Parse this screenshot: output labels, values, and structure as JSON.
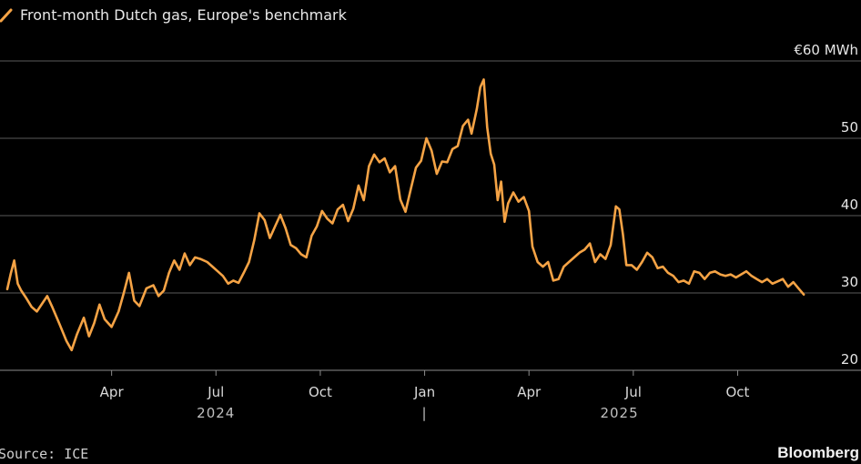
{
  "chart_data": {
    "type": "line",
    "title": "Front-month Dutch gas, Europe's benchmark",
    "unit_label": "€60 MWh",
    "ylim": [
      20,
      60
    ],
    "yticks": [
      {
        "value": 20,
        "label": "20"
      },
      {
        "value": 30,
        "label": "30"
      },
      {
        "value": 40,
        "label": "40"
      },
      {
        "value": 50,
        "label": "50"
      },
      {
        "value": 60,
        "label": "€60 MWh"
      }
    ],
    "xlim": [
      0,
      23.5
    ],
    "xticks": [
      {
        "value": 3,
        "label": "Apr"
      },
      {
        "value": 6,
        "label": "Jul"
      },
      {
        "value": 9,
        "label": "Oct"
      },
      {
        "value": 12,
        "label": "Jan"
      },
      {
        "value": 15,
        "label": "Apr"
      },
      {
        "value": 18,
        "label": "Jul"
      },
      {
        "value": 21,
        "label": "Oct"
      }
    ],
    "years": [
      {
        "label": "2024",
        "value": 6
      },
      {
        "label": "|",
        "value": 12
      },
      {
        "label": "2025",
        "value": 17.6
      }
    ],
    "series": [
      {
        "name": "Front-month Dutch gas",
        "color": "#f5a345",
        "x_units": "months since 2024-01-01",
        "points": [
          [
            0.0,
            30.5
          ],
          [
            0.1,
            32.5
          ],
          [
            0.2,
            34.2
          ],
          [
            0.3,
            31.2
          ],
          [
            0.4,
            30.3
          ],
          [
            0.55,
            29.3
          ],
          [
            0.7,
            28.2
          ],
          [
            0.85,
            27.6
          ],
          [
            1.0,
            28.6
          ],
          [
            1.15,
            29.6
          ],
          [
            1.3,
            28.1
          ],
          [
            1.5,
            26.0
          ],
          [
            1.7,
            23.8
          ],
          [
            1.85,
            22.6
          ],
          [
            2.0,
            24.6
          ],
          [
            2.2,
            26.8
          ],
          [
            2.35,
            24.4
          ],
          [
            2.5,
            26.1
          ],
          [
            2.65,
            28.5
          ],
          [
            2.8,
            26.6
          ],
          [
            3.0,
            25.6
          ],
          [
            3.2,
            27.6
          ],
          [
            3.35,
            30.0
          ],
          [
            3.5,
            32.6
          ],
          [
            3.65,
            29.0
          ],
          [
            3.8,
            28.3
          ],
          [
            4.0,
            30.6
          ],
          [
            4.2,
            31.0
          ],
          [
            4.35,
            29.6
          ],
          [
            4.5,
            30.3
          ],
          [
            4.65,
            32.6
          ],
          [
            4.8,
            34.2
          ],
          [
            4.95,
            33.0
          ],
          [
            5.1,
            35.1
          ],
          [
            5.25,
            33.6
          ],
          [
            5.4,
            34.6
          ],
          [
            5.55,
            34.4
          ],
          [
            5.75,
            34.0
          ],
          [
            5.9,
            33.4
          ],
          [
            6.05,
            32.8
          ],
          [
            6.2,
            32.2
          ],
          [
            6.35,
            31.2
          ],
          [
            6.5,
            31.6
          ],
          [
            6.65,
            31.3
          ],
          [
            6.8,
            32.6
          ],
          [
            6.95,
            34.0
          ],
          [
            7.1,
            36.8
          ],
          [
            7.25,
            40.3
          ],
          [
            7.4,
            39.4
          ],
          [
            7.55,
            37.1
          ],
          [
            7.7,
            38.6
          ],
          [
            7.85,
            40.1
          ],
          [
            8.0,
            38.4
          ],
          [
            8.15,
            36.2
          ],
          [
            8.3,
            35.8
          ],
          [
            8.45,
            35.0
          ],
          [
            8.6,
            34.6
          ],
          [
            8.75,
            37.4
          ],
          [
            8.9,
            38.6
          ],
          [
            9.05,
            40.6
          ],
          [
            9.2,
            39.6
          ],
          [
            9.35,
            39.0
          ],
          [
            9.5,
            40.8
          ],
          [
            9.65,
            41.4
          ],
          [
            9.8,
            39.3
          ],
          [
            9.95,
            40.9
          ],
          [
            10.1,
            43.9
          ],
          [
            10.25,
            42.0
          ],
          [
            10.4,
            46.4
          ],
          [
            10.55,
            47.9
          ],
          [
            10.7,
            46.9
          ],
          [
            10.85,
            47.4
          ],
          [
            11.0,
            45.6
          ],
          [
            11.15,
            46.4
          ],
          [
            11.3,
            42.1
          ],
          [
            11.45,
            40.5
          ],
          [
            11.6,
            43.4
          ],
          [
            11.75,
            46.2
          ],
          [
            11.9,
            47.1
          ],
          [
            12.05,
            50.0
          ],
          [
            12.2,
            48.4
          ],
          [
            12.35,
            45.4
          ],
          [
            12.5,
            47.0
          ],
          [
            12.65,
            46.9
          ],
          [
            12.8,
            48.6
          ],
          [
            12.95,
            49.0
          ],
          [
            13.1,
            51.6
          ],
          [
            13.25,
            52.4
          ],
          [
            13.35,
            50.6
          ],
          [
            13.5,
            53.8
          ],
          [
            13.6,
            56.6
          ],
          [
            13.7,
            57.6
          ],
          [
            13.8,
            51.4
          ],
          [
            13.9,
            48.0
          ],
          [
            14.0,
            46.6
          ],
          [
            14.1,
            42.0
          ],
          [
            14.2,
            44.4
          ],
          [
            14.3,
            39.2
          ],
          [
            14.4,
            41.6
          ],
          [
            14.55,
            43.0
          ],
          [
            14.7,
            41.8
          ],
          [
            14.85,
            42.4
          ],
          [
            15.0,
            40.6
          ],
          [
            15.1,
            36.0
          ],
          [
            15.25,
            34.0
          ],
          [
            15.4,
            33.4
          ],
          [
            15.55,
            34.0
          ],
          [
            15.7,
            31.6
          ],
          [
            15.85,
            31.8
          ],
          [
            16.0,
            33.4
          ],
          [
            16.15,
            34.0
          ],
          [
            16.3,
            34.6
          ],
          [
            16.45,
            35.2
          ],
          [
            16.6,
            35.6
          ],
          [
            16.75,
            36.4
          ],
          [
            16.9,
            34.0
          ],
          [
            17.05,
            35.0
          ],
          [
            17.2,
            34.4
          ],
          [
            17.35,
            36.2
          ],
          [
            17.5,
            41.2
          ],
          [
            17.6,
            40.8
          ],
          [
            17.7,
            37.6
          ],
          [
            17.8,
            33.6
          ],
          [
            17.95,
            33.6
          ],
          [
            18.1,
            33.0
          ],
          [
            18.25,
            34.0
          ],
          [
            18.4,
            35.2
          ],
          [
            18.55,
            34.6
          ],
          [
            18.7,
            33.2
          ],
          [
            18.85,
            33.4
          ],
          [
            19.0,
            32.6
          ],
          [
            19.15,
            32.2
          ],
          [
            19.3,
            31.4
          ],
          [
            19.45,
            31.6
          ],
          [
            19.6,
            31.2
          ],
          [
            19.75,
            32.8
          ],
          [
            19.9,
            32.6
          ],
          [
            20.05,
            31.8
          ],
          [
            20.2,
            32.6
          ],
          [
            20.35,
            32.8
          ],
          [
            20.5,
            32.4
          ],
          [
            20.65,
            32.2
          ],
          [
            20.8,
            32.4
          ],
          [
            20.95,
            32.0
          ],
          [
            21.1,
            32.4
          ],
          [
            21.25,
            32.8
          ],
          [
            21.4,
            32.2
          ],
          [
            21.55,
            31.8
          ],
          [
            21.7,
            31.4
          ],
          [
            21.85,
            31.8
          ],
          [
            22.0,
            31.2
          ],
          [
            22.15,
            31.5
          ],
          [
            22.3,
            31.8
          ],
          [
            22.45,
            30.8
          ],
          [
            22.6,
            31.4
          ],
          [
            22.75,
            30.6
          ],
          [
            22.9,
            29.8
          ]
        ]
      }
    ]
  },
  "footer": {
    "source": "Source: ICE",
    "brand": "Bloomberg"
  }
}
